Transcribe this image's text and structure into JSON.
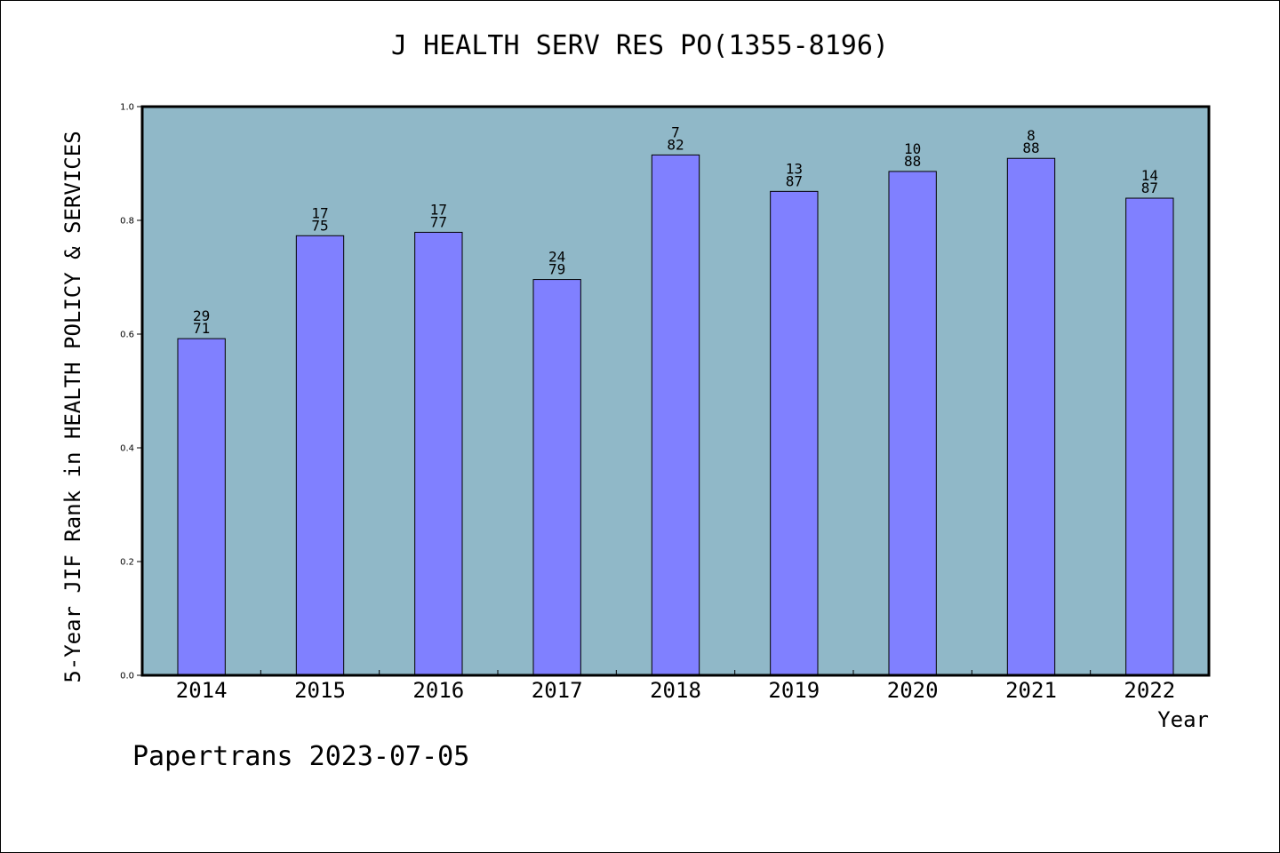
{
  "chart_data": {
    "type": "bar",
    "title": "J HEALTH SERV RES PO(1355-8196)",
    "ylabel": "5-Year JIF Rank in HEALTH POLICY & SERVICES",
    "xlabel": "Year",
    "ylim": [
      0,
      1.0
    ],
    "yticks": [
      "0.0",
      "0.2",
      "0.4",
      "0.6",
      "0.8",
      "1.0"
    ],
    "categories": [
      "2014",
      "2015",
      "2016",
      "2017",
      "2018",
      "2019",
      "2020",
      "2021",
      "2022"
    ],
    "values": [
      0.592,
      0.773,
      0.779,
      0.696,
      0.915,
      0.851,
      0.886,
      0.909,
      0.839
    ],
    "rank": [
      "29",
      "17",
      "17",
      "24",
      "7",
      "13",
      "10",
      "8",
      "14"
    ],
    "total": [
      "71",
      "75",
      "77",
      "79",
      "82",
      "87",
      "88",
      "88",
      "87"
    ],
    "colors": {
      "plot_bg": "#90b8c8",
      "bar": "#8080ff"
    }
  },
  "footer": "Papertrans 2023-07-05"
}
